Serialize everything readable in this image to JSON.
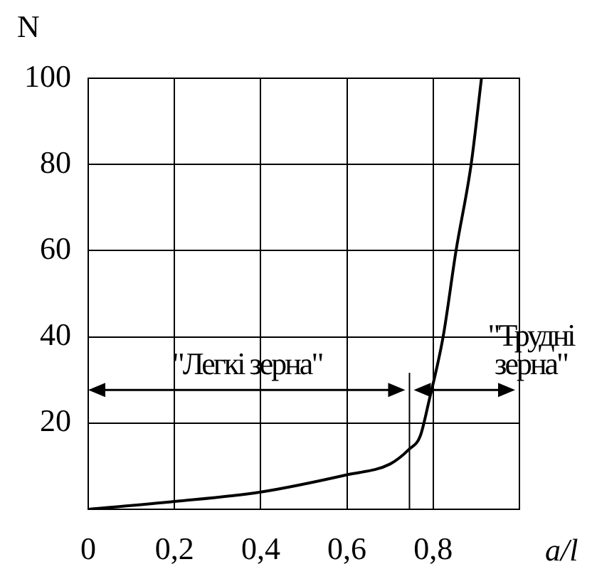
{
  "chart_data": {
    "type": "line",
    "xlabel": "a/l",
    "ylabel": "N",
    "x": [
      0,
      0.2,
      0.4,
      0.6,
      0.7,
      0.745,
      0.77,
      0.79,
      0.823,
      0.853,
      0.888,
      0.912
    ],
    "series": [
      {
        "color": "#000000",
        "values": [
          0,
          1.8,
          4,
          8,
          10.5,
          14,
          17,
          25,
          40,
          60,
          80,
          100
        ]
      }
    ],
    "xlim": [
      0,
      1
    ],
    "ylim": [
      0,
      100
    ],
    "xticks": [
      0,
      {
        "value": 0.2,
        "label": "0,2"
      },
      {
        "value": 0.4,
        "label": "0,4"
      },
      {
        "value": 0.6,
        "label": "0,6"
      },
      {
        "value": 0.8,
        "label": "0,8"
      }
    ],
    "yticks": [
      20,
      40,
      60,
      80,
      100
    ],
    "annotations": [
      "\"Легкі зерна\"",
      "\"Трудні зерна\""
    ],
    "grid": true,
    "legend": false,
    "marker": "none",
    "line_style": "solid"
  }
}
